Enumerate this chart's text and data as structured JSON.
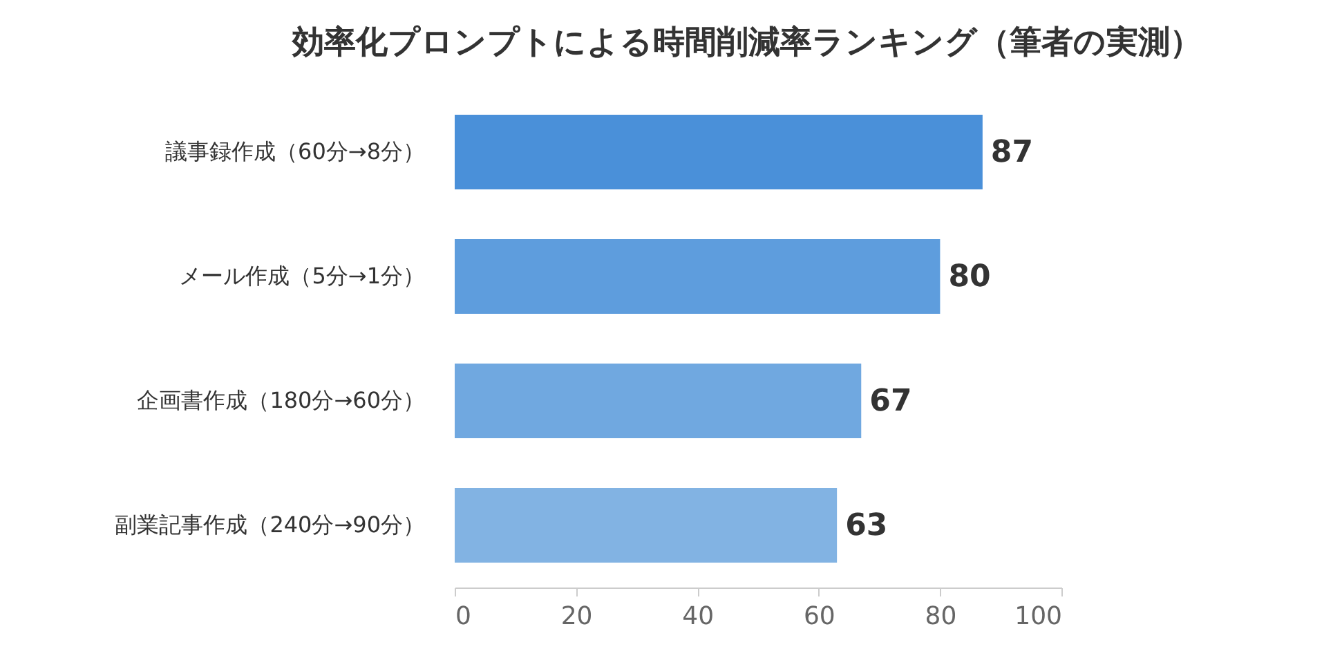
{
  "chart_data": {
    "type": "bar",
    "orientation": "horizontal",
    "title": "効率化プロンプトによる時間削減率ランキング（筆者の実測）",
    "categories": [
      "議事録作成（60分→8分）",
      "メール作成（5分→1分）",
      "企画書作成（180分→60分）",
      "副業記事作成（240分→90分）"
    ],
    "values": [
      87,
      80,
      67,
      63
    ],
    "colors": [
      "#4a90d9",
      "#5e9ddd",
      "#70a8e0",
      "#82b3e3"
    ],
    "xlim": [
      0,
      100
    ],
    "xticks": [
      0,
      20,
      40,
      60,
      80,
      100
    ],
    "grid": false,
    "data_labels": true
  }
}
